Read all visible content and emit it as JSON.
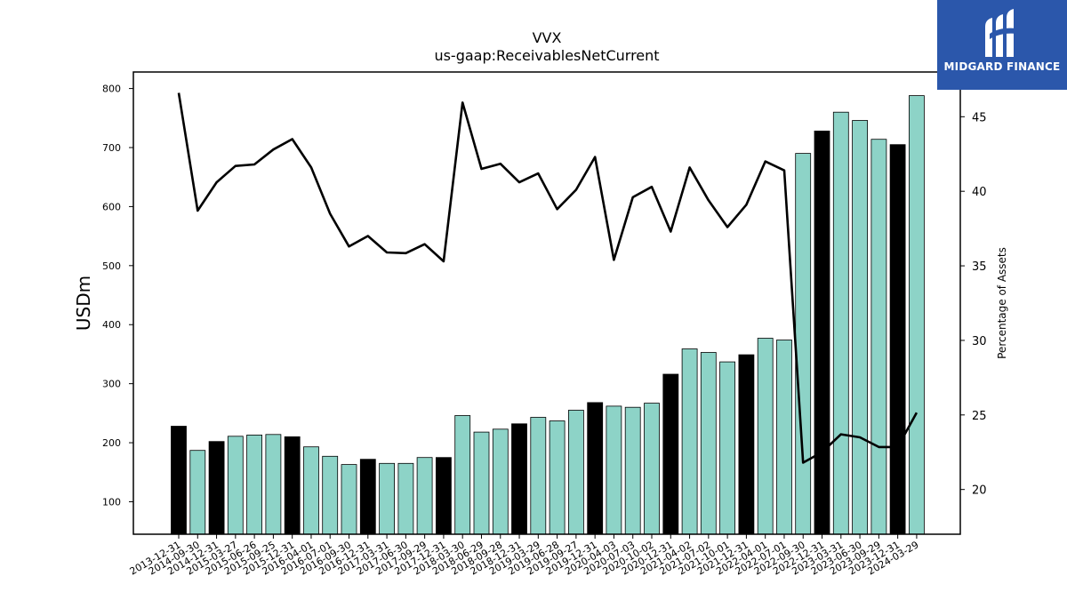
{
  "brand": {
    "name": "MIDGARD FINANCE",
    "color": "#2b57ab"
  },
  "chart_data": {
    "type": "bar",
    "title": "VVX",
    "subtitle": "us-gaap:ReceivablesNetCurrent",
    "ylabel": "USDm",
    "y2label": "Percentage of Assets",
    "ylim": [
      45,
      828
    ],
    "y2lim": [
      17.0,
      48.0
    ],
    "yticks": [
      100,
      200,
      300,
      400,
      500,
      600,
      700,
      800
    ],
    "y2ticks": [
      20,
      25,
      30,
      35,
      40,
      45
    ],
    "categories": [
      "2013-12-31",
      "2014-09-30",
      "2014-12-31",
      "2015-03-27",
      "2015-06-26",
      "2015-09-25",
      "2015-12-31",
      "2016-04-01",
      "2016-07-01",
      "2016-09-30",
      "2016-12-31",
      "2017-03-31",
      "2017-06-30",
      "2017-09-29",
      "2017-12-31",
      "2018-03-30",
      "2018-06-29",
      "2018-09-28",
      "2018-12-31",
      "2019-03-29",
      "2019-06-28",
      "2019-09-27",
      "2019-12-31",
      "2020-04-03",
      "2020-07-03",
      "2020-10-02",
      "2020-12-31",
      "2021-04-02",
      "2021-07-02",
      "2021-10-01",
      "2021-12-31",
      "2022-04-01",
      "2022-07-01",
      "2022-09-30",
      "2022-12-31",
      "2023-03-31",
      "2023-06-30",
      "2023-09-29",
      "2023-12-31",
      "2024-03-29"
    ],
    "series": [
      {
        "type": "bar",
        "values": [
          228,
          187,
          202,
          211,
          213,
          214,
          210,
          193,
          177,
          163,
          172,
          165,
          165,
          175,
          175,
          246,
          218,
          223,
          232,
          243,
          237,
          255,
          268,
          262,
          260,
          267,
          316,
          359,
          353,
          337,
          349,
          377,
          374,
          690,
          728,
          760,
          746,
          714,
          705,
          788
        ]
      },
      {
        "type": "line",
        "axis": "right",
        "values": [
          46.6,
          38.7,
          40.6,
          41.7,
          41.8,
          42.8,
          43.5,
          41.6,
          38.5,
          36.3,
          37.0,
          35.9,
          35.85,
          36.45,
          35.3,
          45.95,
          41.5,
          41.85,
          40.6,
          41.2,
          38.8,
          40.1,
          42.3,
          35.4,
          39.6,
          40.3,
          37.3,
          41.6,
          39.4,
          37.6,
          39.1,
          42.0,
          41.4,
          21.8,
          22.5,
          23.7,
          23.5,
          22.85,
          22.85,
          25.15
        ]
      }
    ],
    "annual_flags": [
      true,
      false,
      true,
      false,
      false,
      false,
      true,
      false,
      false,
      false,
      true,
      false,
      false,
      false,
      true,
      false,
      false,
      false,
      true,
      false,
      false,
      false,
      true,
      false,
      false,
      false,
      true,
      false,
      false,
      false,
      true,
      false,
      false,
      false,
      true,
      false,
      false,
      false,
      true,
      false
    ],
    "colors": {
      "annual_bar": "#000000",
      "quarter_bar": "#8dd3c7",
      "line": "#000000"
    },
    "grid": false,
    "legend": "none"
  }
}
